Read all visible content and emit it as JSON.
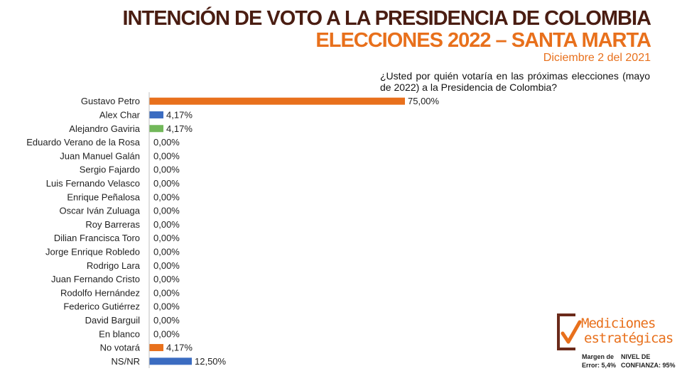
{
  "header": {
    "title_line1": "INTENCIÓN DE VOTO A LA PRESIDENCIA DE COLOMBIA",
    "title_line2": "ELECCIONES 2022 – SANTA MARTA",
    "date": "Diciembre 2 del 2021"
  },
  "question": "¿Usted por quién votaría en las próximas elecciones (mayo de 2022) a la Presidencia de Colombia?",
  "chart_data": {
    "type": "bar",
    "orientation": "horizontal",
    "categories": [
      "Gustavo Petro",
      "Alex Char",
      "Alejandro Gaviria",
      "Eduardo Verano de la Rosa",
      "Juan Manuel Galán",
      "Sergio Fajardo",
      "Luis Fernando Velasco",
      "Enrique Peñalosa",
      "Oscar Iván Zuluaga",
      "Roy Barreras",
      "Dilian Francisca Toro",
      "Jorge Enrique Robledo",
      "Rodrigo Lara",
      "Juan Fernando Cristo",
      "Rodolfo Hernández",
      "Federico Gutiérrez",
      "David Barguil",
      "En blanco",
      "No votará",
      "NS/NR"
    ],
    "values": [
      75.0,
      4.17,
      4.17,
      0,
      0,
      0,
      0,
      0,
      0,
      0,
      0,
      0,
      0,
      0,
      0,
      0,
      0,
      0,
      4.17,
      12.5
    ],
    "labels": [
      "75,00%",
      "4,17%",
      "4,17%",
      "0,00%",
      "0,00%",
      "0,00%",
      "0,00%",
      "0,00%",
      "0,00%",
      "0,00%",
      "0,00%",
      "0,00%",
      "0,00%",
      "0,00%",
      "0,00%",
      "0,00%",
      "0,00%",
      "0,00%",
      "4,17%",
      "12,50%"
    ],
    "colors": [
      "#e8701c",
      "#3b6cc1",
      "#72b85a",
      "#3b6cc1",
      "#3b6cc1",
      "#3b6cc1",
      "#3b6cc1",
      "#3b6cc1",
      "#3b6cc1",
      "#3b6cc1",
      "#3b6cc1",
      "#3b6cc1",
      "#3b6cc1",
      "#3b6cc1",
      "#3b6cc1",
      "#3b6cc1",
      "#3b6cc1",
      "#3b6cc1",
      "#e8701c",
      "#3b6cc1"
    ],
    "xlim": [
      0,
      100
    ],
    "grid": false,
    "legend": "none"
  },
  "logo": {
    "line1": "Mediciones",
    "line2": "estratégicas",
    "brand_color": "#e8701c",
    "frame_color": "#6b2a1a"
  },
  "footnotes": {
    "margin_line1": "Margen de",
    "margin_line2": "Error: 5,4%",
    "confidence_line1": "NIVEL DE",
    "confidence_line2": "CONFIANZA: 95%"
  }
}
